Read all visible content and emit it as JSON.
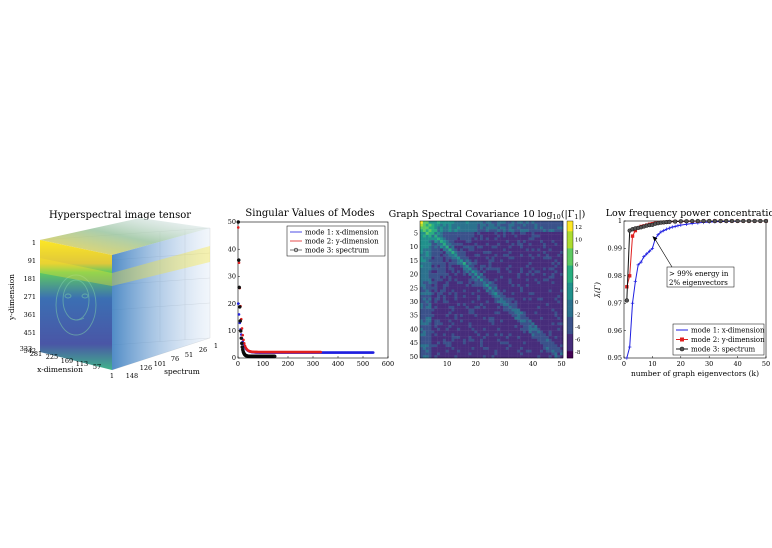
{
  "colors": {
    "viridis_low": "#3b2b8c",
    "viridis_mid": "#21918c",
    "viridis_high": "#fde725",
    "mode1": "#1f1fe0",
    "mode2": "#e01f1f",
    "mode3": "#111111"
  },
  "chart_data": [
    {
      "type": "other",
      "title": "Hyperspectral image tensor",
      "ylabel": "y-dimension",
      "xlabel": "x-dimension",
      "zlabel": "spectrum",
      "y_ticks": [
        "1",
        "91",
        "181",
        "271",
        "361",
        "451",
        "542"
      ],
      "x_ticks": [
        "333",
        "281",
        "225",
        "169",
        "113",
        "57",
        "1"
      ],
      "z_ticks": [
        "148",
        "126",
        "101",
        "76",
        "51",
        "26",
        "1"
      ]
    },
    {
      "type": "scatter",
      "title": "Singular Values of Modes",
      "xlim": [
        0,
        600
      ],
      "ylim": [
        0,
        50
      ],
      "x_ticks": [
        0,
        100,
        200,
        300,
        400,
        500,
        600
      ],
      "y_ticks": [
        0,
        10,
        20,
        30,
        40,
        50
      ],
      "legend_position": "top-right",
      "series": [
        {
          "name": "mode 1: x-dimension",
          "n": 542,
          "peak": 20,
          "tail": 2.0,
          "decay": 12,
          "marker": "plus"
        },
        {
          "name": "mode 2: y-dimension",
          "n": 333,
          "peak": 48,
          "tail": 2.2,
          "decay": 9,
          "marker": "star"
        },
        {
          "name": "mode 3: spectrum",
          "n": 148,
          "peak": 50,
          "tail": 0.6,
          "decay": 6,
          "marker": "circle"
        }
      ]
    },
    {
      "type": "heatmap",
      "title": "Graph Spectral Covariance 10 log10(|Γ1|)",
      "size": 50,
      "x_ticks": [
        10,
        20,
        30,
        40,
        50
      ],
      "y_ticks": [
        5,
        10,
        15,
        20,
        25,
        30,
        35,
        40,
        45,
        50
      ],
      "colorbar_ticks": [
        12,
        10,
        8,
        6,
        4,
        2,
        0,
        -2,
        -4,
        -6,
        -8
      ],
      "clim": [
        -9,
        13
      ]
    },
    {
      "type": "line",
      "title": "Low frequency power concentration",
      "xlabel": "number of graph eigenvectors (k)",
      "xlim": [
        0,
        50
      ],
      "ylim": [
        0.95,
        1.0
      ],
      "x_ticks": [
        0,
        10,
        20,
        30,
        40,
        50
      ],
      "y_ticks": [
        0.95,
        0.96,
        0.97,
        0.98,
        0.99,
        1.0
      ],
      "legend_position": "bottom-right",
      "annotation": {
        "line1": "> 99% energy in",
        "line2": "2% eigenvectors",
        "target_x": 10,
        "target_y": 0.9945
      },
      "series": [
        {
          "name": "mode 1: x-dimension",
          "marker": "plus",
          "x": [
            1,
            2,
            3,
            4,
            5,
            6,
            7,
            8,
            9,
            10,
            11,
            12,
            13,
            14,
            15,
            16,
            17,
            18,
            19,
            20,
            22,
            24,
            26,
            28,
            30,
            32,
            34,
            36,
            38,
            40,
            42,
            44,
            46,
            48,
            50
          ],
          "y": [
            0.95,
            0.954,
            0.97,
            0.978,
            0.984,
            0.985,
            0.987,
            0.988,
            0.989,
            0.99,
            0.9935,
            0.995,
            0.996,
            0.9965,
            0.997,
            0.9974,
            0.9978,
            0.998,
            0.9983,
            0.9985,
            0.9988,
            0.9991,
            0.9993,
            0.9995,
            0.9996,
            0.9997,
            0.9998,
            0.9998,
            0.9999,
            0.9999,
            1.0,
            1.0,
            1.0,
            1.0,
            1.0
          ]
        },
        {
          "name": "mode 2: y-dimension",
          "marker": "square",
          "x": [
            1,
            2,
            3,
            4,
            5,
            6,
            7,
            8,
            9,
            10,
            11,
            12,
            13,
            14,
            15,
            16,
            18,
            20,
            22,
            24,
            26,
            28,
            30,
            32,
            34,
            36,
            38,
            40,
            42,
            44,
            46,
            48,
            50
          ],
          "y": [
            0.976,
            0.98,
            0.9945,
            0.9965,
            0.9975,
            0.998,
            0.9982,
            0.9985,
            0.9988,
            0.999,
            0.9992,
            0.9993,
            0.9994,
            0.9995,
            0.9996,
            0.9997,
            0.9998,
            0.9998,
            0.9999,
            0.9999,
            0.9999,
            1.0,
            1.0,
            1.0,
            1.0,
            1.0,
            1.0,
            1.0,
            1.0,
            1.0,
            1.0,
            1.0,
            1.0
          ]
        },
        {
          "name": "mode 3: spectrum",
          "marker": "circle",
          "x": [
            1,
            2,
            3,
            4,
            5,
            6,
            7,
            8,
            9,
            10,
            11,
            12,
            13,
            14,
            15,
            16,
            18,
            20,
            22,
            24,
            26,
            28,
            30,
            32,
            34,
            36,
            38,
            40,
            42,
            44,
            46,
            48,
            50
          ],
          "y": [
            0.971,
            0.9965,
            0.997,
            0.9973,
            0.9975,
            0.9977,
            0.998,
            0.9983,
            0.9985,
            0.9986,
            0.999,
            0.9992,
            0.9994,
            0.9995,
            0.9996,
            0.9997,
            0.9998,
            0.9999,
            0.9999,
            1.0,
            1.0,
            1.0,
            1.0,
            1.0,
            1.0,
            1.0,
            1.0,
            1.0,
            1.0,
            1.0,
            1.0,
            1.0,
            1.0
          ]
        }
      ]
    }
  ]
}
